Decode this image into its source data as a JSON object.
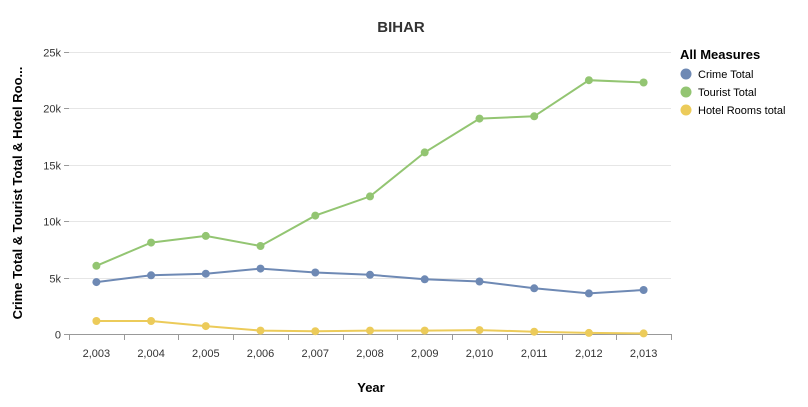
{
  "chart_data": {
    "type": "line",
    "title": "BIHAR",
    "xlabel": "Year",
    "ylabel": "Crime Total & Tourist Total & Hotel Roo...",
    "categories": [
      "2,003",
      "2,004",
      "2,005",
      "2,006",
      "2,007",
      "2,008",
      "2,009",
      "2,010",
      "2,011",
      "2,012",
      "2,013"
    ],
    "y_ticks": [
      {
        "value": 0,
        "label": "0"
      },
      {
        "value": 5000,
        "label": "5k"
      },
      {
        "value": 10000,
        "label": "10k"
      },
      {
        "value": 15000,
        "label": "15k"
      },
      {
        "value": 20000,
        "label": "20k"
      },
      {
        "value": 25000,
        "label": "25k"
      }
    ],
    "ylim": [
      0,
      25000
    ],
    "grid": true,
    "legend": {
      "title": "All Measures",
      "placement": "right"
    },
    "series": [
      {
        "name": "Crime Total",
        "color": "#6e89b4",
        "values": [
          4600,
          5200,
          5350,
          5800,
          5450,
          5250,
          4850,
          4650,
          4050,
          3600,
          3900
        ]
      },
      {
        "name": "Tourist Total",
        "color": "#93c572",
        "values": [
          6050,
          8100,
          8700,
          7800,
          10500,
          12200,
          16100,
          19100,
          19300,
          22500,
          22300
        ]
      },
      {
        "name": "Hotel Rooms total",
        "color": "#eccb5a",
        "values": [
          1150,
          1150,
          700,
          300,
          250,
          300,
          300,
          350,
          200,
          100,
          50
        ]
      }
    ]
  }
}
